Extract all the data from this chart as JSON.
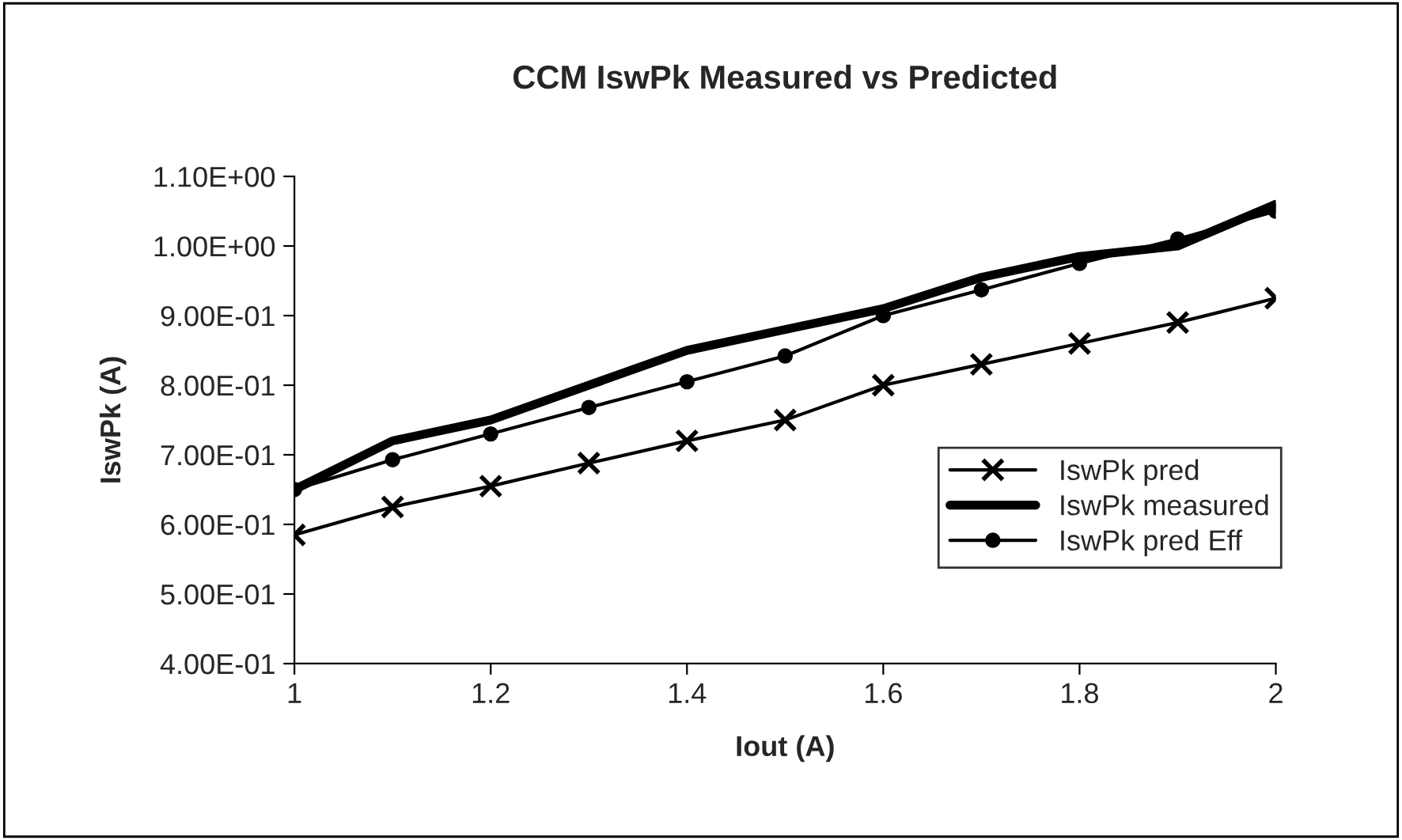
{
  "chart_data": {
    "type": "line",
    "title": "CCM IswPk Measured vs Predicted",
    "xlabel": "Iout (A)",
    "ylabel": "IswPk (A)",
    "x": [
      1,
      1.1,
      1.2,
      1.3,
      1.4,
      1.5,
      1.6,
      1.7,
      1.8,
      1.9,
      2
    ],
    "series": [
      {
        "name": "IswPk pred",
        "color": "#000000",
        "marker": "cross",
        "values": [
          0.585,
          0.625,
          0.655,
          0.688,
          0.72,
          0.75,
          0.8,
          0.83,
          0.86,
          0.89,
          0.925
        ]
      },
      {
        "name": "IswPk measured",
        "color": "#000000",
        "marker": "none",
        "values": [
          0.65,
          0.72,
          0.75,
          0.8,
          0.85,
          0.88,
          0.91,
          0.955,
          0.985,
          1.0,
          1.06
        ]
      },
      {
        "name": "IswPk pred Eff",
        "color": "#000000",
        "marker": "circle",
        "values": [
          0.65,
          0.693,
          0.73,
          0.768,
          0.805,
          0.842,
          0.9,
          0.937,
          0.975,
          1.01,
          1.05
        ]
      }
    ],
    "xlim": [
      1,
      2
    ],
    "xticks": [
      1,
      1.2,
      1.4,
      1.6,
      1.8,
      2
    ],
    "ylim": [
      0.4,
      1.1
    ],
    "yticks": [
      {
        "value": 0.4,
        "label": "4.00E-01"
      },
      {
        "value": 0.5,
        "label": "5.00E-01"
      },
      {
        "value": 0.6,
        "label": "6.00E-01"
      },
      {
        "value": 0.7,
        "label": "7.00E-01"
      },
      {
        "value": 0.8,
        "label": "8.00E-01"
      },
      {
        "value": 0.9,
        "label": "9.00E-01"
      },
      {
        "value": 1.0,
        "label": "1.00E+00"
      },
      {
        "value": 1.1,
        "label": "1.10E+00"
      }
    ],
    "grid": false,
    "legend": "center right",
    "line_style": "solid"
  }
}
